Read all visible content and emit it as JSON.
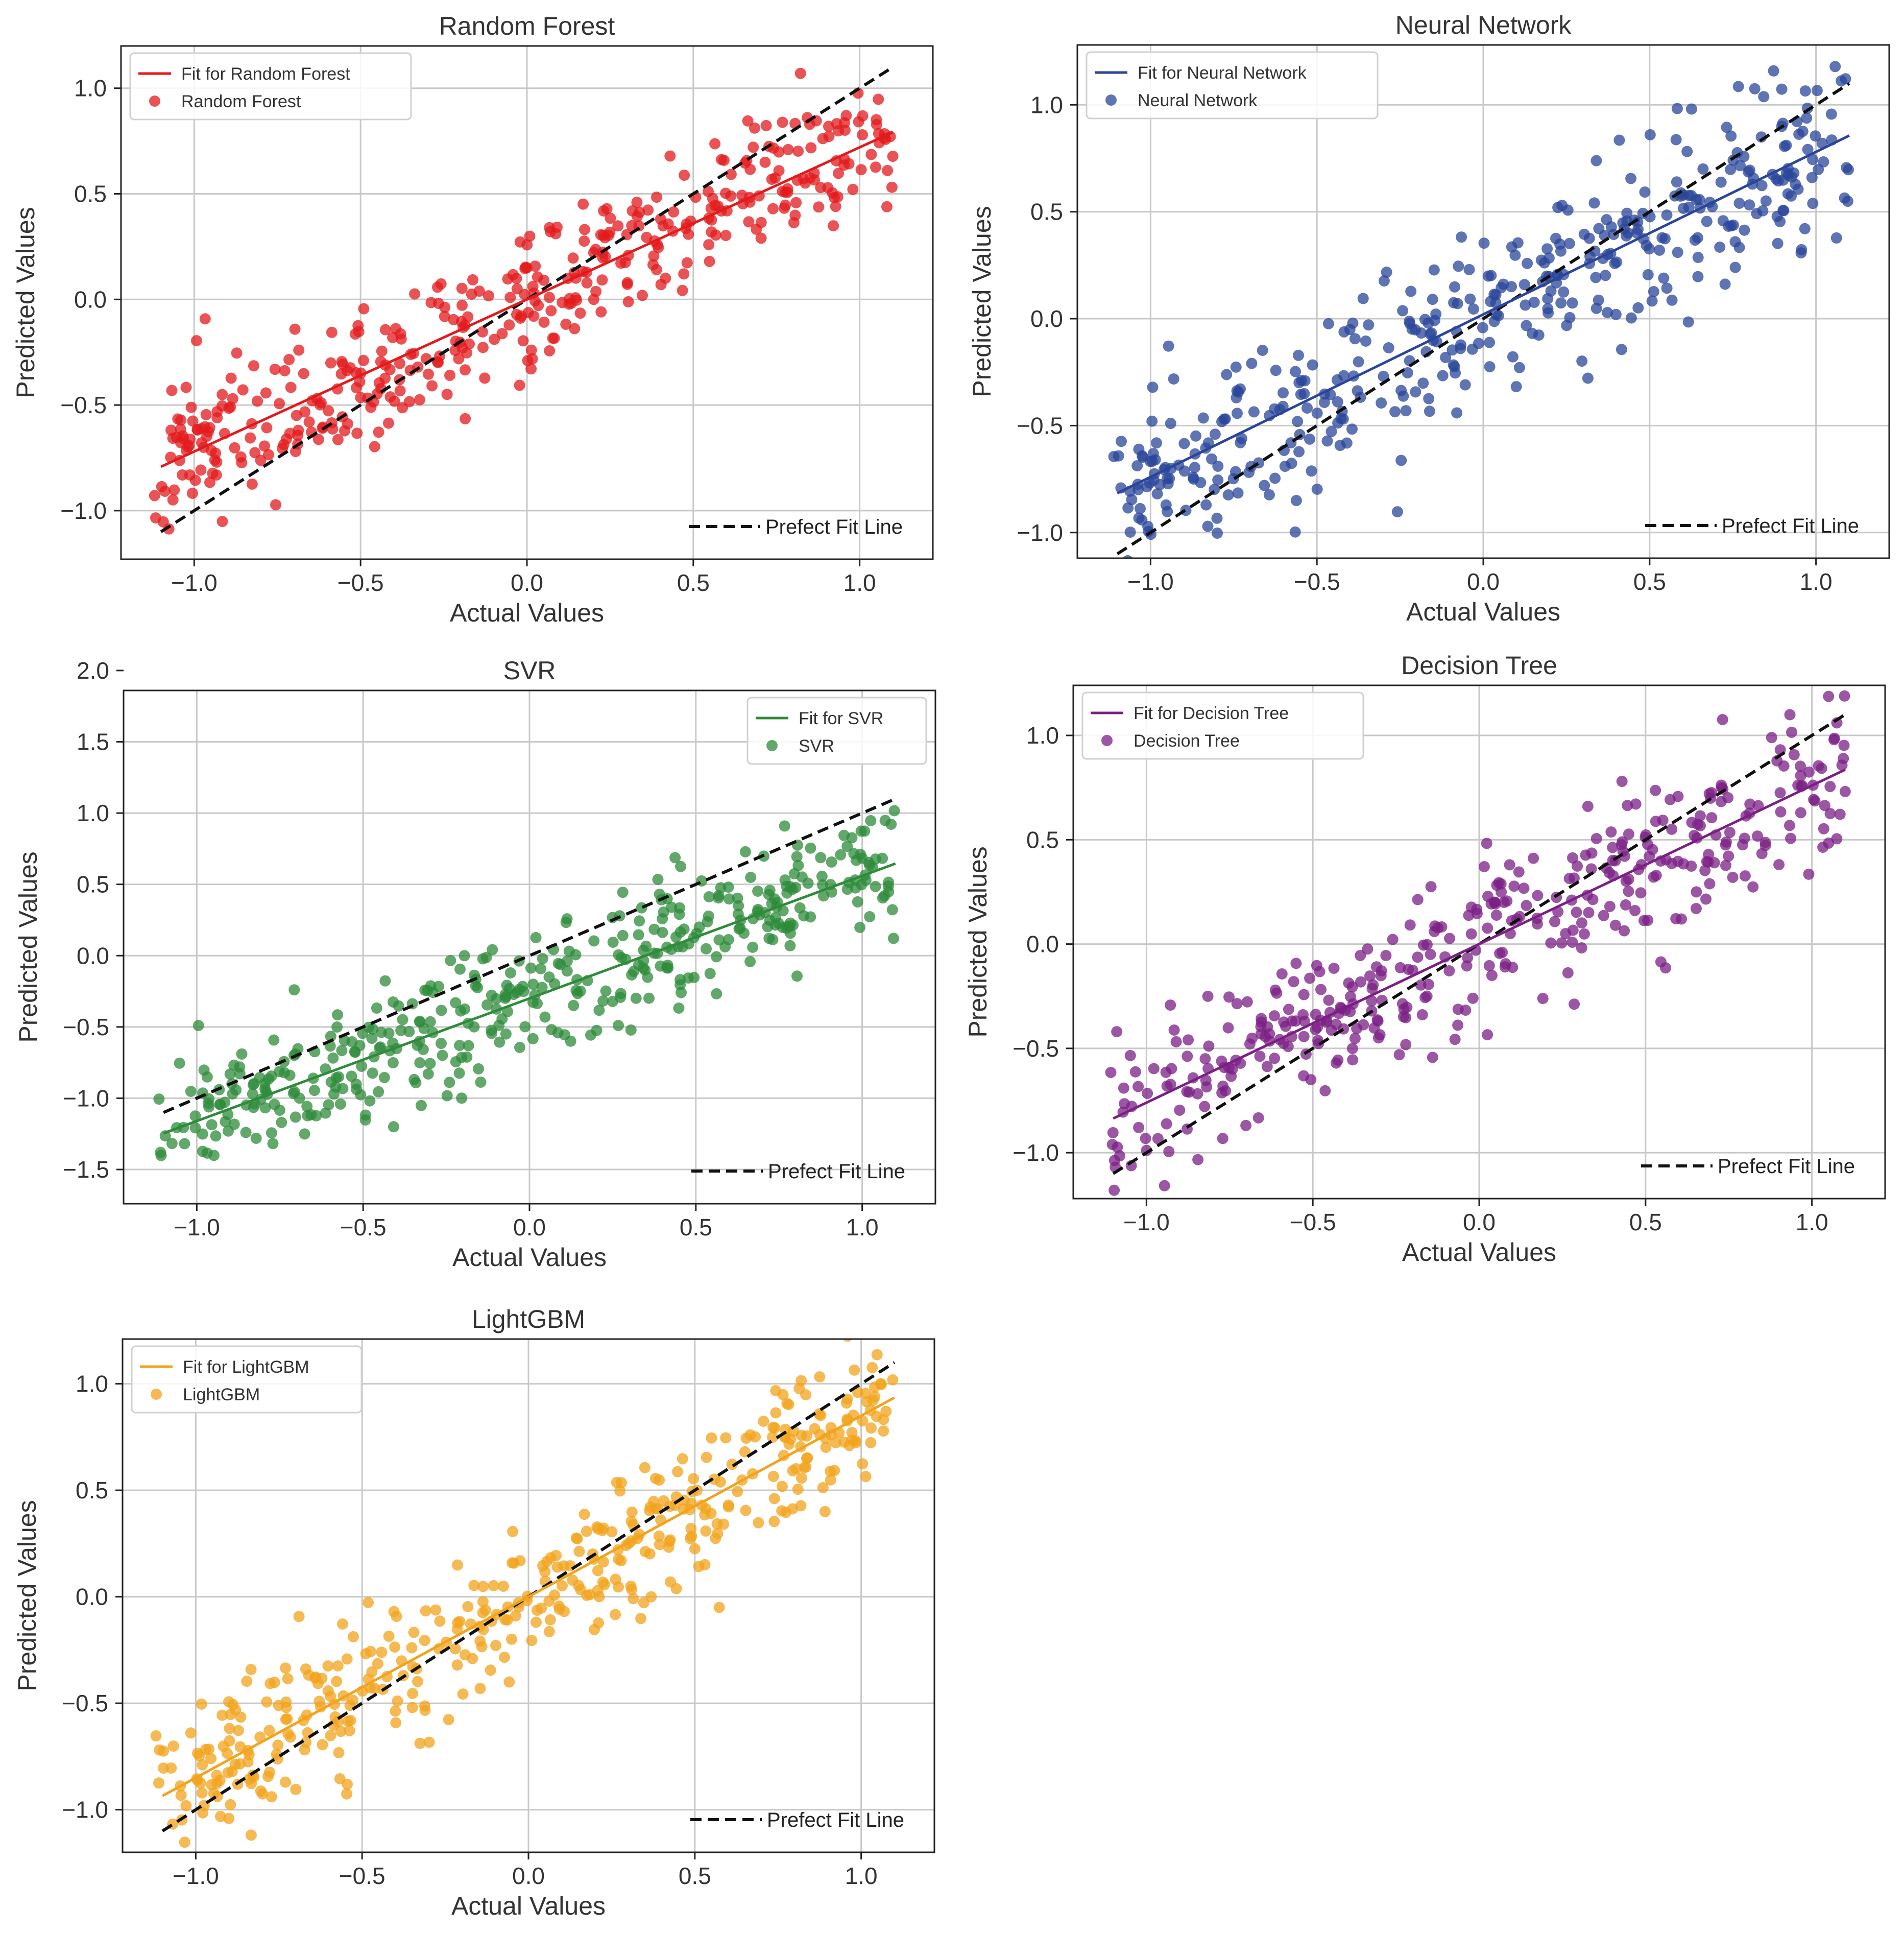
{
  "common": {
    "xlabel": "Actual Values",
    "ylabel": "Predicted Values",
    "perfect_fit_label": "Prefect Fit Line",
    "perfect_fit_color": "#111111",
    "grid": true
  },
  "chart_data": [
    {
      "type": "scatter",
      "title": "Random Forest",
      "color": "#e31a1c",
      "xlim": [
        -1.22,
        1.22
      ],
      "ylim": [
        -1.23,
        1.2
      ],
      "xticks": [
        "−1.0",
        "−0.5",
        "0.0",
        "0.5",
        "1.0"
      ],
      "xtick_values": [
        -1.0,
        -0.5,
        0.0,
        0.5,
        1.0
      ],
      "yticks": [
        "−1.0",
        "−0.5",
        "0.0",
        "0.5",
        "1.0"
      ],
      "ytick_values": [
        -1.0,
        -0.5,
        0.0,
        0.5,
        1.0
      ],
      "legend": [
        "Fit for Random Forest",
        "Random Forest"
      ],
      "legend_position": "top-left",
      "fit": {
        "slope": 0.72,
        "intercept": 0.0,
        "x_range": [
          -1.1,
          1.1
        ]
      },
      "perfect_fit_range": [
        -1.1,
        1.1
      ],
      "n_points": 430,
      "noise": 0.17,
      "seed": 11
    },
    {
      "type": "scatter",
      "title": "Neural Network",
      "color": "#2a4599",
      "xlim": [
        -1.22,
        1.22
      ],
      "ylim": [
        -1.12,
        1.28
      ],
      "xticks": [
        "−1.0",
        "−0.5",
        "0.0",
        "0.5",
        "1.0"
      ],
      "xtick_values": [
        -1.0,
        -0.5,
        0.0,
        0.5,
        1.0
      ],
      "yticks": [
        "−1.0",
        "−0.5",
        "0.0",
        "0.5",
        "1.0"
      ],
      "ytick_values": [
        -1.0,
        -0.5,
        0.0,
        0.5,
        1.0
      ],
      "legend": [
        "Fit for Neural Network",
        "Neural Network"
      ],
      "legend_position": "top-left",
      "fit": {
        "slope": 0.76,
        "intercept": 0.02,
        "x_range": [
          -1.1,
          1.1
        ]
      },
      "perfect_fit_range": [
        -1.1,
        1.1
      ],
      "n_points": 430,
      "noise": 0.2,
      "seed": 23
    },
    {
      "type": "scatter",
      "title": "SVR",
      "color": "#2e8b3a",
      "xlim": [
        -1.22,
        1.22
      ],
      "ylim": [
        -1.74,
        1.86
      ],
      "xticks": [
        "−1.0",
        "−0.5",
        "0.0",
        "0.5",
        "1.0"
      ],
      "xtick_values": [
        -1.0,
        -0.5,
        0.0,
        0.5,
        1.0
      ],
      "yticks": [
        "−1.5",
        "−1.0",
        "−0.5",
        "0.0",
        "0.5",
        "1.0",
        "1.5",
        "2.0"
      ],
      "ytick_values": [
        -1.5,
        -1.0,
        -0.5,
        0.0,
        0.5,
        1.0,
        1.5,
        2.0
      ],
      "legend": [
        "Fit for SVR",
        "SVR"
      ],
      "legend_position": "top-right",
      "fit": {
        "slope": 0.86,
        "intercept": -0.3,
        "x_range": [
          -1.1,
          1.1
        ]
      },
      "perfect_fit_range": [
        -1.1,
        1.1
      ],
      "n_points": 430,
      "noise": 0.22,
      "seed": 37
    },
    {
      "type": "scatter",
      "title": "Decision Tree",
      "color": "#7b1f85",
      "xlim": [
        -1.22,
        1.22
      ],
      "ylim": [
        -1.22,
        1.24
      ],
      "xticks": [
        "−1.0",
        "−0.5",
        "0.0",
        "0.5",
        "1.0"
      ],
      "xtick_values": [
        -1.0,
        -0.5,
        0.0,
        0.5,
        1.0
      ],
      "yticks": [
        "−1.0",
        "−0.5",
        "0.0",
        "0.5",
        "1.0"
      ],
      "ytick_values": [
        -1.0,
        -0.5,
        0.0,
        0.5,
        1.0
      ],
      "legend": [
        "Fit for Decision Tree",
        "Decision Tree"
      ],
      "legend_position": "top-left",
      "fit": {
        "slope": 0.76,
        "intercept": 0.0,
        "x_range": [
          -1.1,
          1.1
        ]
      },
      "perfect_fit_range": [
        -1.1,
        1.1
      ],
      "n_points": 400,
      "noise": 0.19,
      "seed": 53
    },
    {
      "type": "scatter",
      "title": "LightGBM",
      "color": "#f2a31b",
      "xlim": [
        -1.22,
        1.22
      ],
      "ylim": [
        -1.2,
        1.21
      ],
      "xticks": [
        "−1.0",
        "−0.5",
        "0.0",
        "0.5",
        "1.0"
      ],
      "xtick_values": [
        -1.0,
        -0.5,
        0.0,
        0.5,
        1.0
      ],
      "yticks": [
        "−1.0",
        "−0.5",
        "0.0",
        "0.5",
        "1.0"
      ],
      "ytick_values": [
        -1.0,
        -0.5,
        0.0,
        0.5,
        1.0
      ],
      "legend": [
        "Fit for LightGBM",
        "LightGBM"
      ],
      "legend_position": "top-left",
      "fit": {
        "slope": 0.85,
        "intercept": 0.0,
        "x_range": [
          -1.1,
          1.1
        ]
      },
      "perfect_fit_range": [
        -1.1,
        1.1
      ],
      "n_points": 430,
      "noise": 0.17,
      "seed": 71
    }
  ]
}
